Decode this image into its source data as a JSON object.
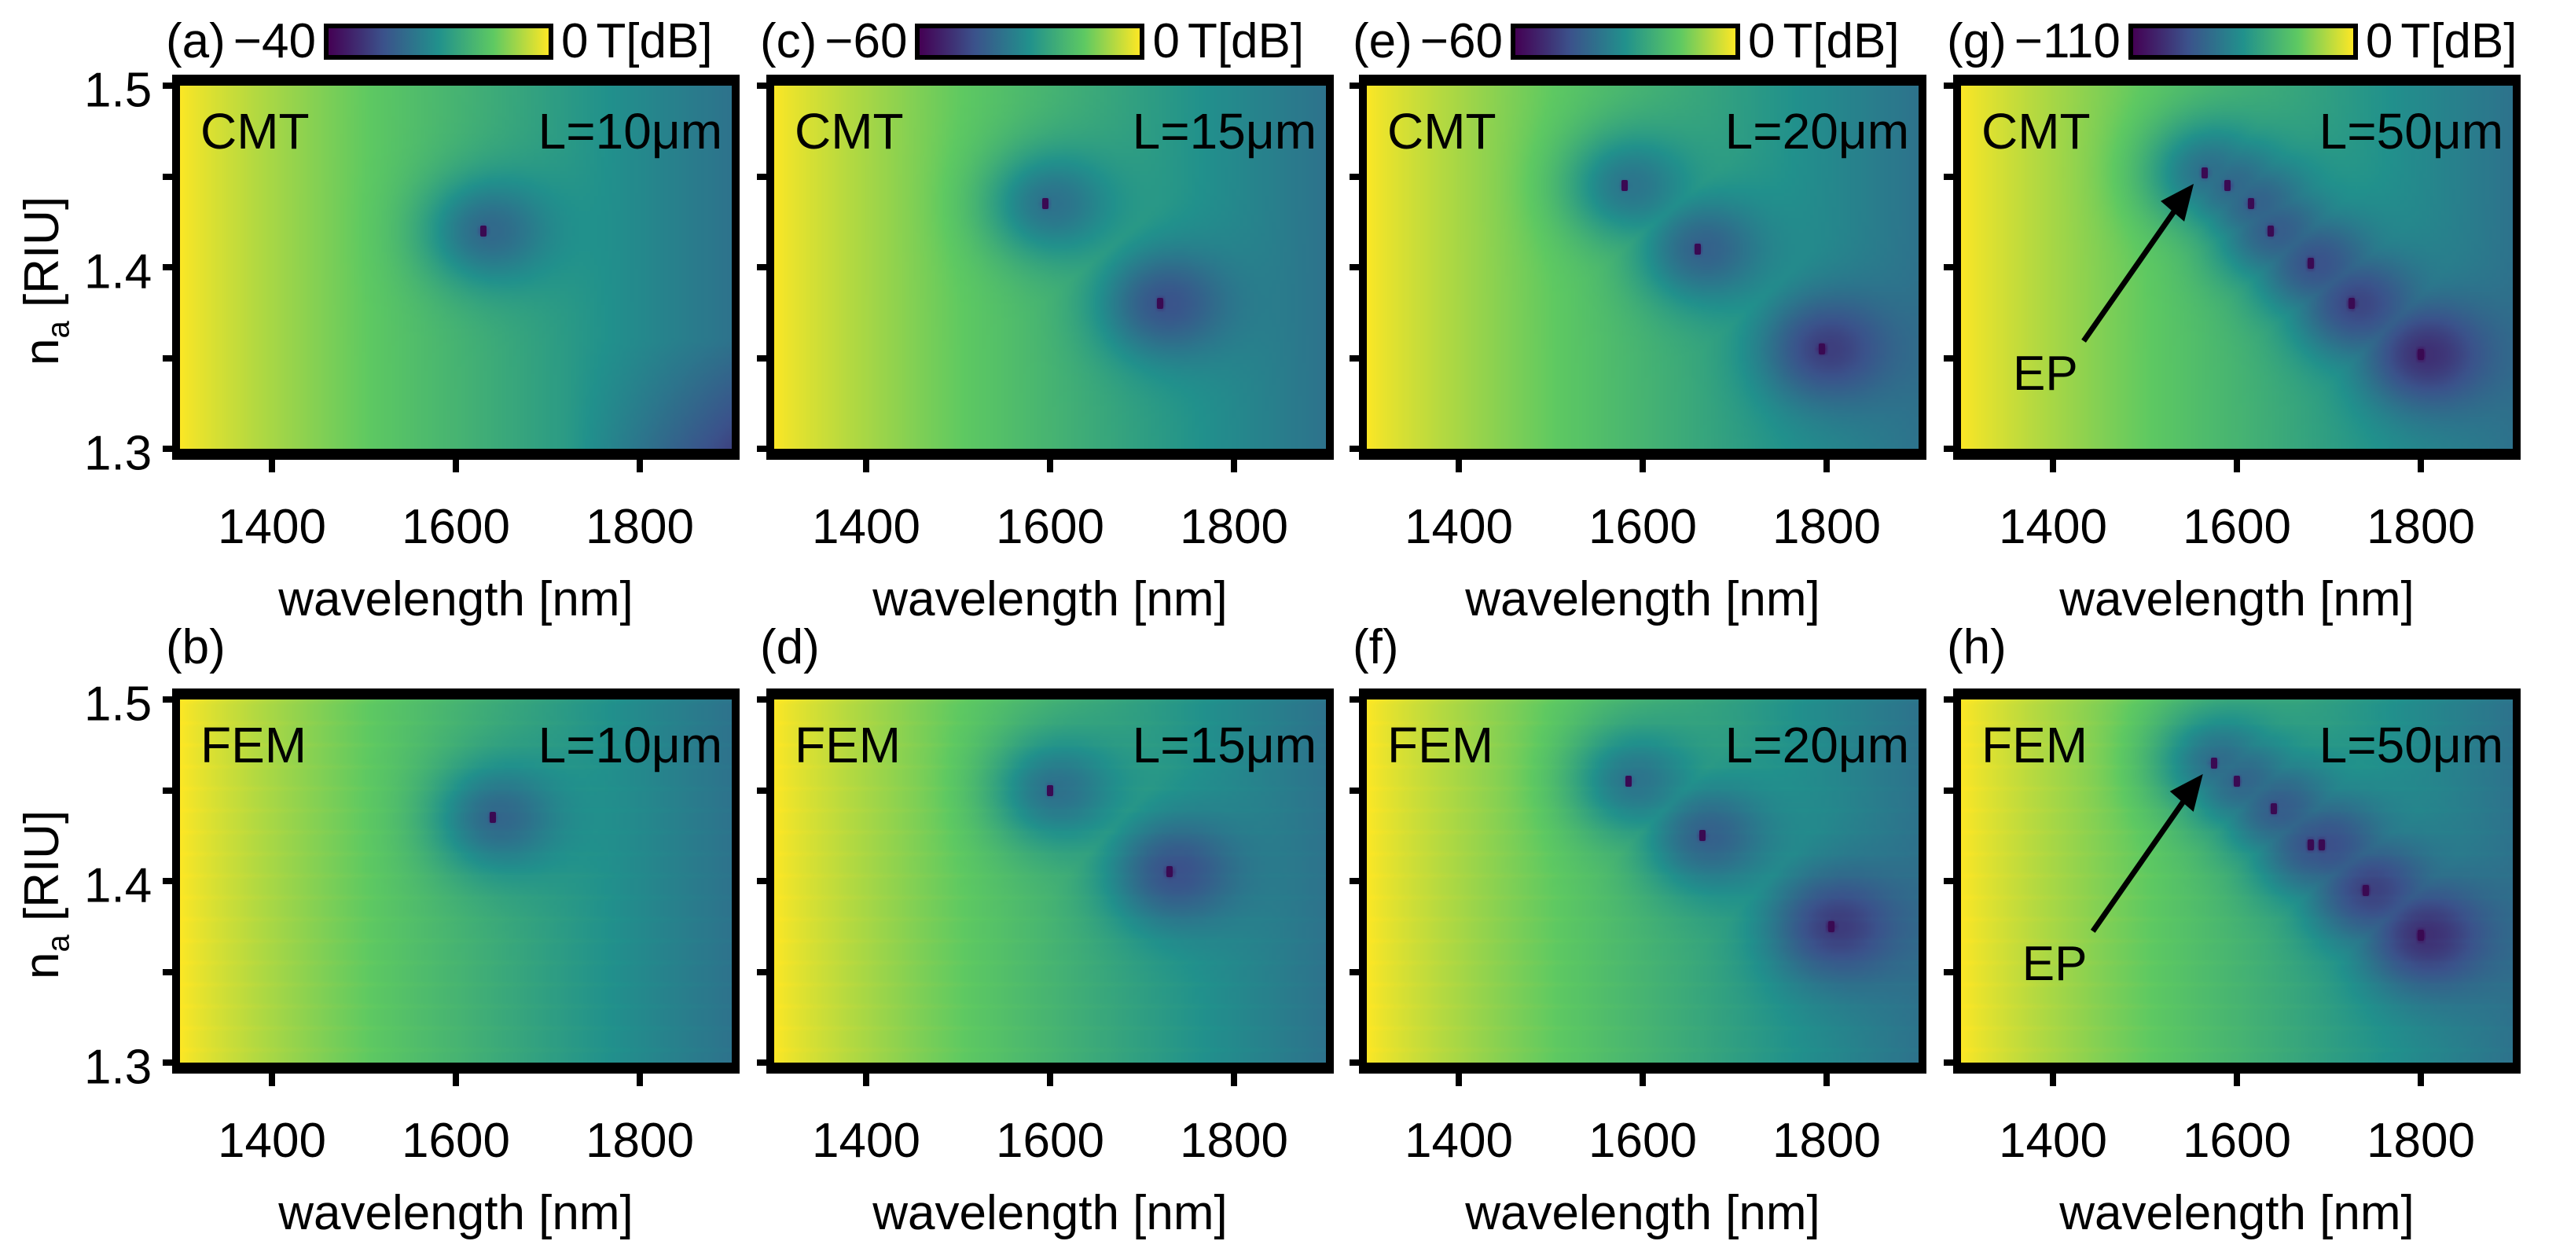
{
  "chart_data": {
    "type": "heatmap",
    "xlabel": "wavelength [nm]",
    "ylabel_main": "n",
    "ylabel_sub": "a",
    "ylabel_unit": " [RIU]",
    "xlim": [
      1300,
      1900
    ],
    "ylim": [
      1.3,
      1.5
    ],
    "xticks": [
      "1400",
      "1600",
      "1800"
    ],
    "xtick_values": [
      1400,
      1600,
      1800
    ],
    "yticks": [
      "1.5",
      "1.4",
      "1.3"
    ],
    "ytick_values": [
      1.5,
      1.4,
      1.3
    ],
    "colorbar_unit": "T[dB]",
    "colorbar_max": "0",
    "colormap": [
      "#440154",
      "#3b528b",
      "#21918c",
      "#5ec962",
      "#fde725"
    ],
    "panels": [
      {
        "label": "(a)",
        "method": "CMT",
        "length": "L=10μm",
        "cbar_min": "−40",
        "dips": [
          [
            1630,
            1.42
          ]
        ],
        "ep": false
      },
      {
        "label": "(b)",
        "method": "FEM",
        "length": "L=10μm",
        "dips": [
          [
            1640,
            1.435
          ]
        ],
        "ep": false
      },
      {
        "label": "(c)",
        "method": "CMT",
        "length": "L=15μm",
        "cbar_min": "−60",
        "dips": [
          [
            1595,
            1.435
          ],
          [
            1720,
            1.38
          ]
        ],
        "ep": false
      },
      {
        "label": "(d)",
        "method": "FEM",
        "length": "L=15μm",
        "dips": [
          [
            1600,
            1.45
          ],
          [
            1730,
            1.405
          ]
        ],
        "ep": false
      },
      {
        "label": "(e)",
        "method": "CMT",
        "length": "L=20μm",
        "cbar_min": "−60",
        "dips": [
          [
            1580,
            1.445
          ],
          [
            1660,
            1.41
          ],
          [
            1795,
            1.355
          ]
        ],
        "ep": false
      },
      {
        "label": "(f)",
        "method": "FEM",
        "length": "L=20μm",
        "dips": [
          [
            1585,
            1.455
          ],
          [
            1665,
            1.425
          ],
          [
            1805,
            1.375
          ]
        ],
        "ep": false
      },
      {
        "label": "(g)",
        "method": "CMT",
        "length": "L=50μm",
        "cbar_min": "−110",
        "dips": [
          [
            1565,
            1.452
          ],
          [
            1590,
            1.445
          ],
          [
            1615,
            1.435
          ],
          [
            1637,
            1.42
          ],
          [
            1680,
            1.402
          ],
          [
            1725,
            1.38
          ],
          [
            1800,
            1.352
          ]
        ],
        "ep": true,
        "ep_label": "EP"
      },
      {
        "label": "(h)",
        "method": "FEM",
        "length": "L=50μm",
        "dips": [
          [
            1575,
            1.465
          ],
          [
            1600,
            1.455
          ],
          [
            1640,
            1.44
          ],
          [
            1680,
            1.42
          ],
          [
            1692,
            1.42
          ],
          [
            1740,
            1.395
          ],
          [
            1800,
            1.37
          ]
        ],
        "ep": true,
        "ep_label": "EP"
      }
    ]
  }
}
